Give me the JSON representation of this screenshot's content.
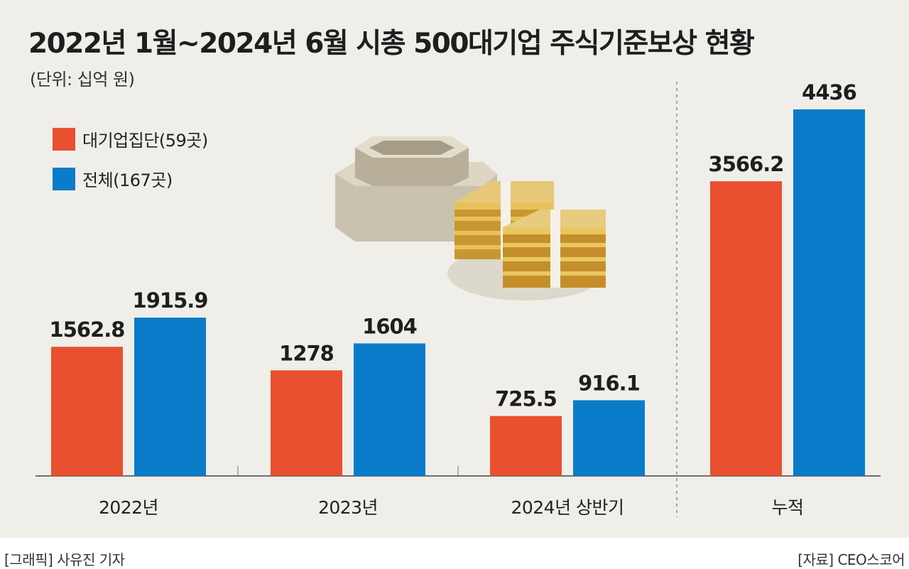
{
  "chart_data": {
    "type": "bar",
    "title": "2022년 1월~2024년 6월 시총 500대기업 주식기준보상 현황",
    "unit_label": "(단위: 십억 원)",
    "categories": [
      "2022년",
      "2023년",
      "2024년 상반기",
      "누적"
    ],
    "series": [
      {
        "name": "대기업집단(59곳)",
        "color": "#e8502f",
        "values": [
          1562.8,
          1278,
          725.5,
          3566.2
        ],
        "labels": [
          "1562.8",
          "1278",
          "725.5",
          "3566.2"
        ]
      },
      {
        "name": "전체(167곳)",
        "color": "#0a7cc9",
        "values": [
          1915.9,
          1604,
          916.1,
          4436
        ],
        "labels": [
          "1915.9",
          "1604",
          "916.1",
          "4436"
        ]
      }
    ],
    "ylim": [
      0,
      4436
    ],
    "grid": false,
    "legend_position": "top-left"
  },
  "footer": {
    "credit": "[그래픽] 사유진 기자",
    "source": "[자료] CEO스코어"
  }
}
